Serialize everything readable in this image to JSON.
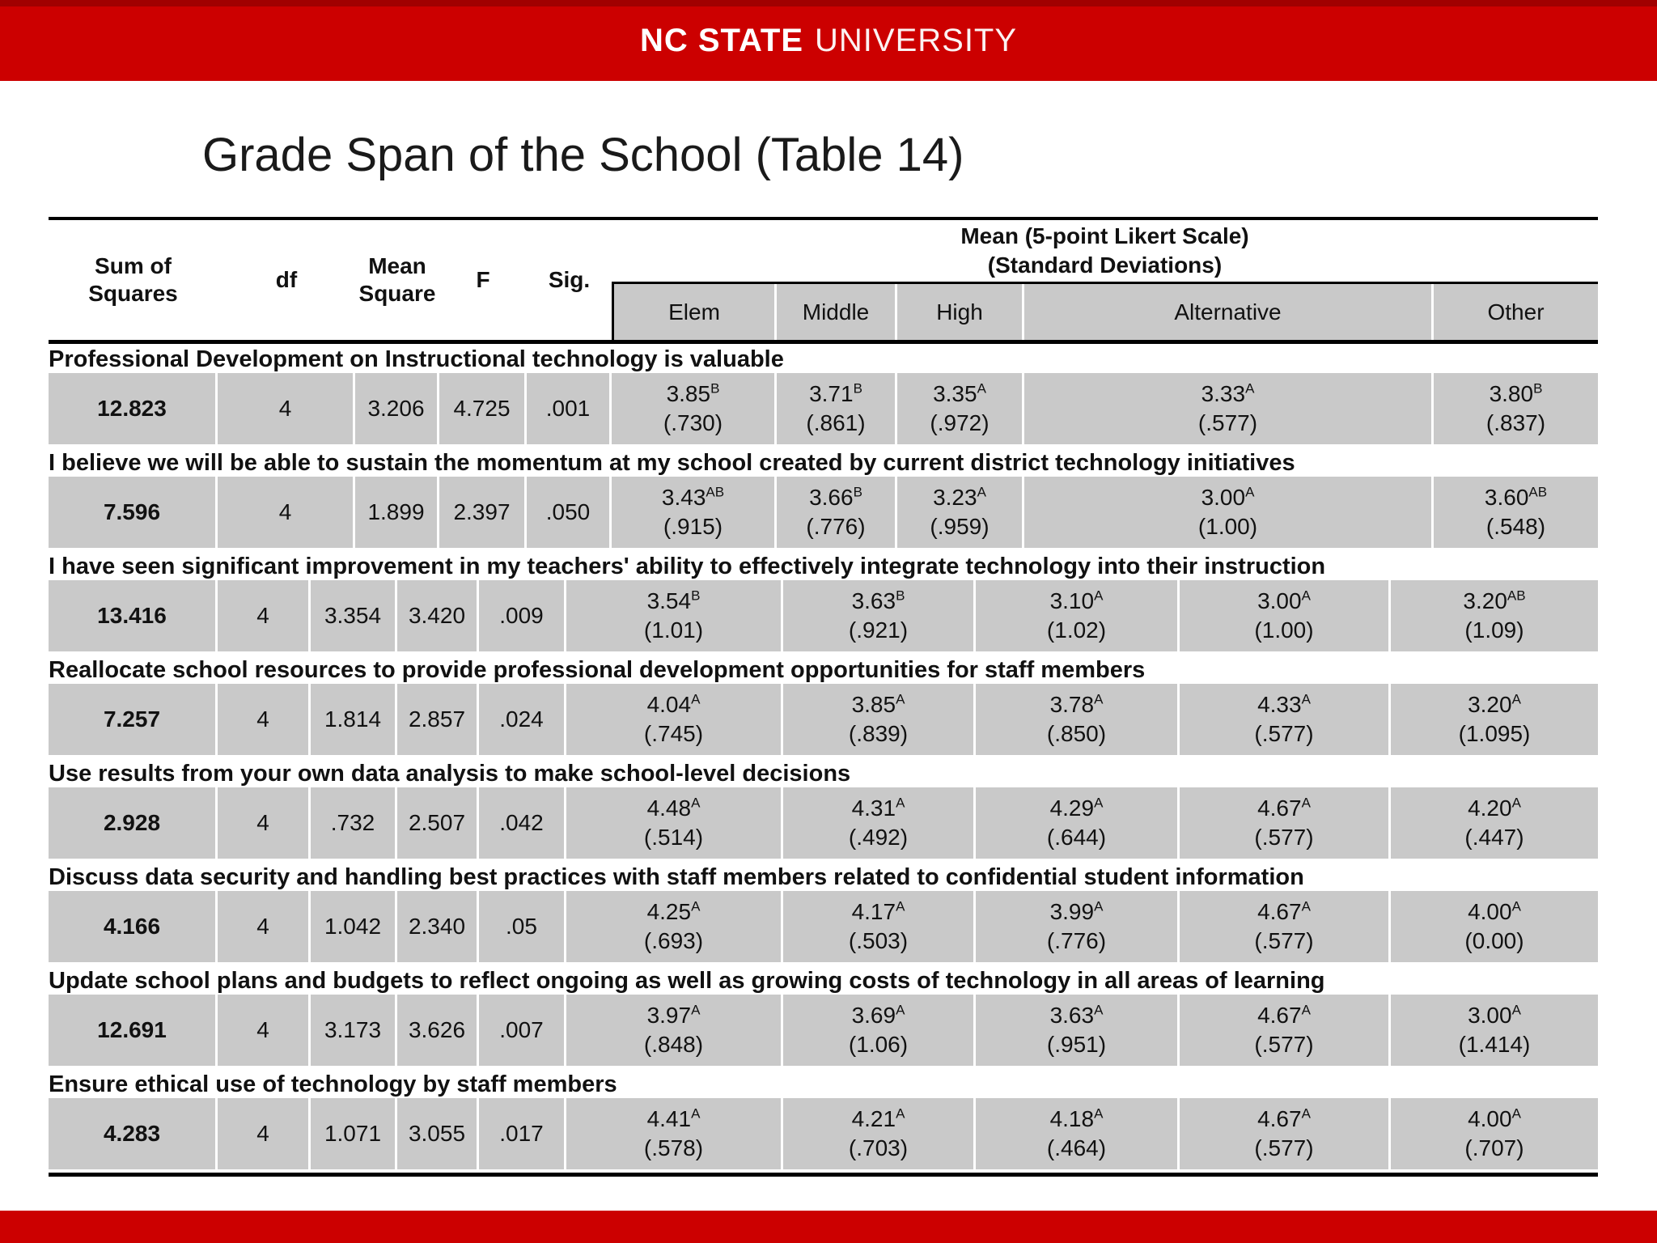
{
  "colors": {
    "brand_red": "#cc0000",
    "brand_red_dark": "#a00000",
    "cell_gray": "#c9c9c9"
  },
  "header": {
    "brand_bold": "NC STATE",
    "brand_regular": "UNIVERSITY"
  },
  "title": "Grade Span of the School (Table 14)",
  "table": {
    "stat_columns": [
      "Sum of\nSquares",
      "df",
      "Mean\nSquare",
      "F",
      "Sig."
    ],
    "likert": {
      "title_line1": "Mean (5-point Likert Scale)",
      "title_line2": "(Standard Deviations)",
      "groups": [
        "Elem",
        "Middle",
        "High",
        "Alternative",
        "Other"
      ]
    },
    "rows": [
      {
        "label": "Professional Development on Instructional technology is valuable",
        "stats": [
          "12.823",
          "4",
          "3.206",
          "4.725",
          ".001"
        ],
        "means": [
          {
            "mean": "3.85",
            "sup": "B",
            "sd": "(.730)"
          },
          {
            "mean": "3.71",
            "sup": "B",
            "sd": "(.861)"
          },
          {
            "mean": "3.35",
            "sup": "A",
            "sd": "(.972)"
          },
          {
            "mean": "3.33",
            "sup": "A",
            "sd": "(.577)"
          },
          {
            "mean": "3.80",
            "sup": "B",
            "sd": "(.837)"
          }
        ]
      },
      {
        "label": "I believe we will be able to sustain the momentum at my school created by current district technology initiatives",
        "stats": [
          "7.596",
          "4",
          "1.899",
          "2.397",
          ".050"
        ],
        "means": [
          {
            "mean": "3.43",
            "sup": "AB",
            "sd": "(.915)"
          },
          {
            "mean": "3.66",
            "sup": "B",
            "sd": "(.776)"
          },
          {
            "mean": "3.23",
            "sup": "A",
            "sd": "(.959)"
          },
          {
            "mean": "3.00",
            "sup": "A",
            "sd": "(1.00)"
          },
          {
            "mean": "3.60",
            "sup": "AB",
            "sd": "(.548)"
          }
        ]
      },
      {
        "label": "I have seen significant improvement in my teachers' ability to effectively integrate technology into their instruction",
        "stats": [
          "13.416",
          "4",
          "3.354",
          "3.420",
          ".009"
        ],
        "means": [
          {
            "mean": "3.54",
            "sup": "B",
            "sd": "(1.01)"
          },
          {
            "mean": "3.63",
            "sup": "B",
            "sd": "(.921)"
          },
          {
            "mean": "3.10",
            "sup": "A",
            "sd": "(1.02)"
          },
          {
            "mean": "3.00",
            "sup": "A",
            "sd": "(1.00)"
          },
          {
            "mean": "3.20",
            "sup": "AB",
            "sd": "(1.09)"
          }
        ]
      },
      {
        "label": "Reallocate school resources  to provide professional development opportunities for staff members",
        "stats": [
          "7.257",
          "4",
          "1.814",
          "2.857",
          ".024"
        ],
        "means": [
          {
            "mean": "4.04",
            "sup": "A",
            "sd": "(.745)"
          },
          {
            "mean": "3.85",
            "sup": "A",
            "sd": "(.839)"
          },
          {
            "mean": "3.78",
            "sup": "A",
            "sd": "(.850)"
          },
          {
            "mean": "4.33",
            "sup": "A",
            "sd": "(.577)"
          },
          {
            "mean": "3.20",
            "sup": "A",
            "sd": "(1.095)"
          }
        ]
      },
      {
        "label": "Use results from your own data analysis to make school-level decisions",
        "stats": [
          "2.928",
          "4",
          ".732",
          "2.507",
          ".042"
        ],
        "means": [
          {
            "mean": "4.48",
            "sup": "A",
            "sd": "(.514)"
          },
          {
            "mean": "4.31",
            "sup": "A",
            "sd": "(.492)"
          },
          {
            "mean": "4.29",
            "sup": "A",
            "sd": "(.644)"
          },
          {
            "mean": "4.67",
            "sup": "A",
            "sd": "(.577)"
          },
          {
            "mean": "4.20",
            "sup": "A",
            "sd": "(.447)"
          }
        ]
      },
      {
        "label": "Discuss data security and handling best practices with staff members related to confidential student information",
        "stats": [
          "4.166",
          "4",
          "1.042",
          "2.340",
          ".05"
        ],
        "means": [
          {
            "mean": "4.25",
            "sup": "A",
            "sd": "(.693)"
          },
          {
            "mean": "4.17",
            "sup": "A",
            "sd": "(.503)"
          },
          {
            "mean": "3.99",
            "sup": "A",
            "sd": "(.776)"
          },
          {
            "mean": "4.67",
            "sup": "A",
            "sd": "(.577)"
          },
          {
            "mean": "4.00",
            "sup": "A",
            "sd": "(0.00)"
          }
        ]
      },
      {
        "label": "Update school plans and budgets to reflect ongoing as well as growing costs of technology in all areas of learning",
        "stats": [
          "12.691",
          "4",
          "3.173",
          "3.626",
          ".007"
        ],
        "means": [
          {
            "mean": "3.97",
            "sup": "A",
            "sd": "(.848)"
          },
          {
            "mean": "3.69",
            "sup": "A",
            "sd": "(1.06)"
          },
          {
            "mean": "3.63",
            "sup": "A",
            "sd": "(.951)"
          },
          {
            "mean": "4.67",
            "sup": "A",
            "sd": "(.577)"
          },
          {
            "mean": "3.00",
            "sup": "A",
            "sd": "(1.414)"
          }
        ]
      },
      {
        "label": "Ensure ethical use of technology by staff members",
        "stats": [
          "4.283",
          "4",
          "1.071",
          "3.055",
          ".017"
        ],
        "means": [
          {
            "mean": "4.41",
            "sup": "A",
            "sd": "(.578)"
          },
          {
            "mean": "4.21",
            "sup": "A",
            "sd": "(.703)"
          },
          {
            "mean": "4.18",
            "sup": "A",
            "sd": "(.464)"
          },
          {
            "mean": "4.67",
            "sup": "A",
            "sd": "(.577)"
          },
          {
            "mean": "4.00",
            "sup": "A",
            "sd": "(.707)"
          }
        ]
      }
    ]
  }
}
